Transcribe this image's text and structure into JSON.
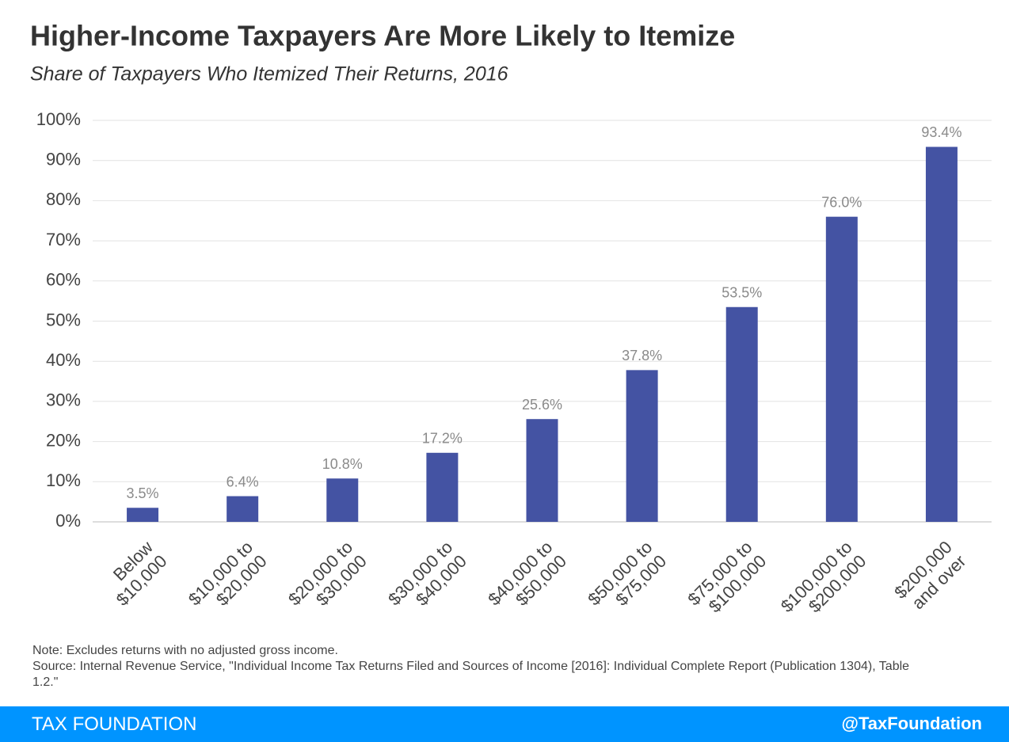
{
  "chart_data": {
    "type": "bar",
    "title": "Higher-Income Taxpayers Are More Likely to Itemize",
    "subtitle": "Share of Taxpayers Who Itemized Their Returns, 2016",
    "categories": [
      [
        "Below",
        "$10,000"
      ],
      [
        "$10,000 to",
        "$20,000"
      ],
      [
        "$20,000 to",
        "$30,000"
      ],
      [
        "$30,000 to",
        "$40,000"
      ],
      [
        "$40,000 to",
        "$50,000"
      ],
      [
        "$50,000 to",
        "$75,000"
      ],
      [
        "$75,000 to",
        "$100,000"
      ],
      [
        "$100,000 to",
        "$200,000"
      ],
      [
        "$200,000",
        "and over"
      ]
    ],
    "values": [
      3.5,
      6.4,
      10.8,
      17.2,
      25.6,
      37.8,
      53.5,
      76.0,
      93.4
    ],
    "value_labels": [
      "3.5%",
      "6.4%",
      "10.8%",
      "17.2%",
      "25.6%",
      "37.8%",
      "53.5%",
      "76.0%",
      "93.4%"
    ],
    "color": "#4453a3",
    "ylim": [
      0,
      100
    ],
    "yticks": [
      {
        "value": 0,
        "label": "0%"
      },
      {
        "value": 10,
        "label": "10%"
      },
      {
        "value": 20,
        "label": "20%"
      },
      {
        "value": 30,
        "label": "30%"
      },
      {
        "value": 40,
        "label": "40%"
      },
      {
        "value": 50,
        "label": "50%"
      },
      {
        "value": 60,
        "label": "60%"
      },
      {
        "value": 70,
        "label": "70%"
      },
      {
        "value": 80,
        "label": "80%"
      },
      {
        "value": 90,
        "label": "90%"
      },
      {
        "value": 100,
        "label": "100%"
      }
    ],
    "grid": true,
    "note": "Note: Excludes returns with no adjusted gross income.",
    "source": "Source: Internal Revenue Service, \"Individual Income Tax Returns Filed and Sources of Income [2016]: Individual Complete Report (Publication 1304), Table 1.2.\"",
    "footer_left": "TAX FOUNDATION",
    "footer_right": "@TaxFoundation"
  }
}
